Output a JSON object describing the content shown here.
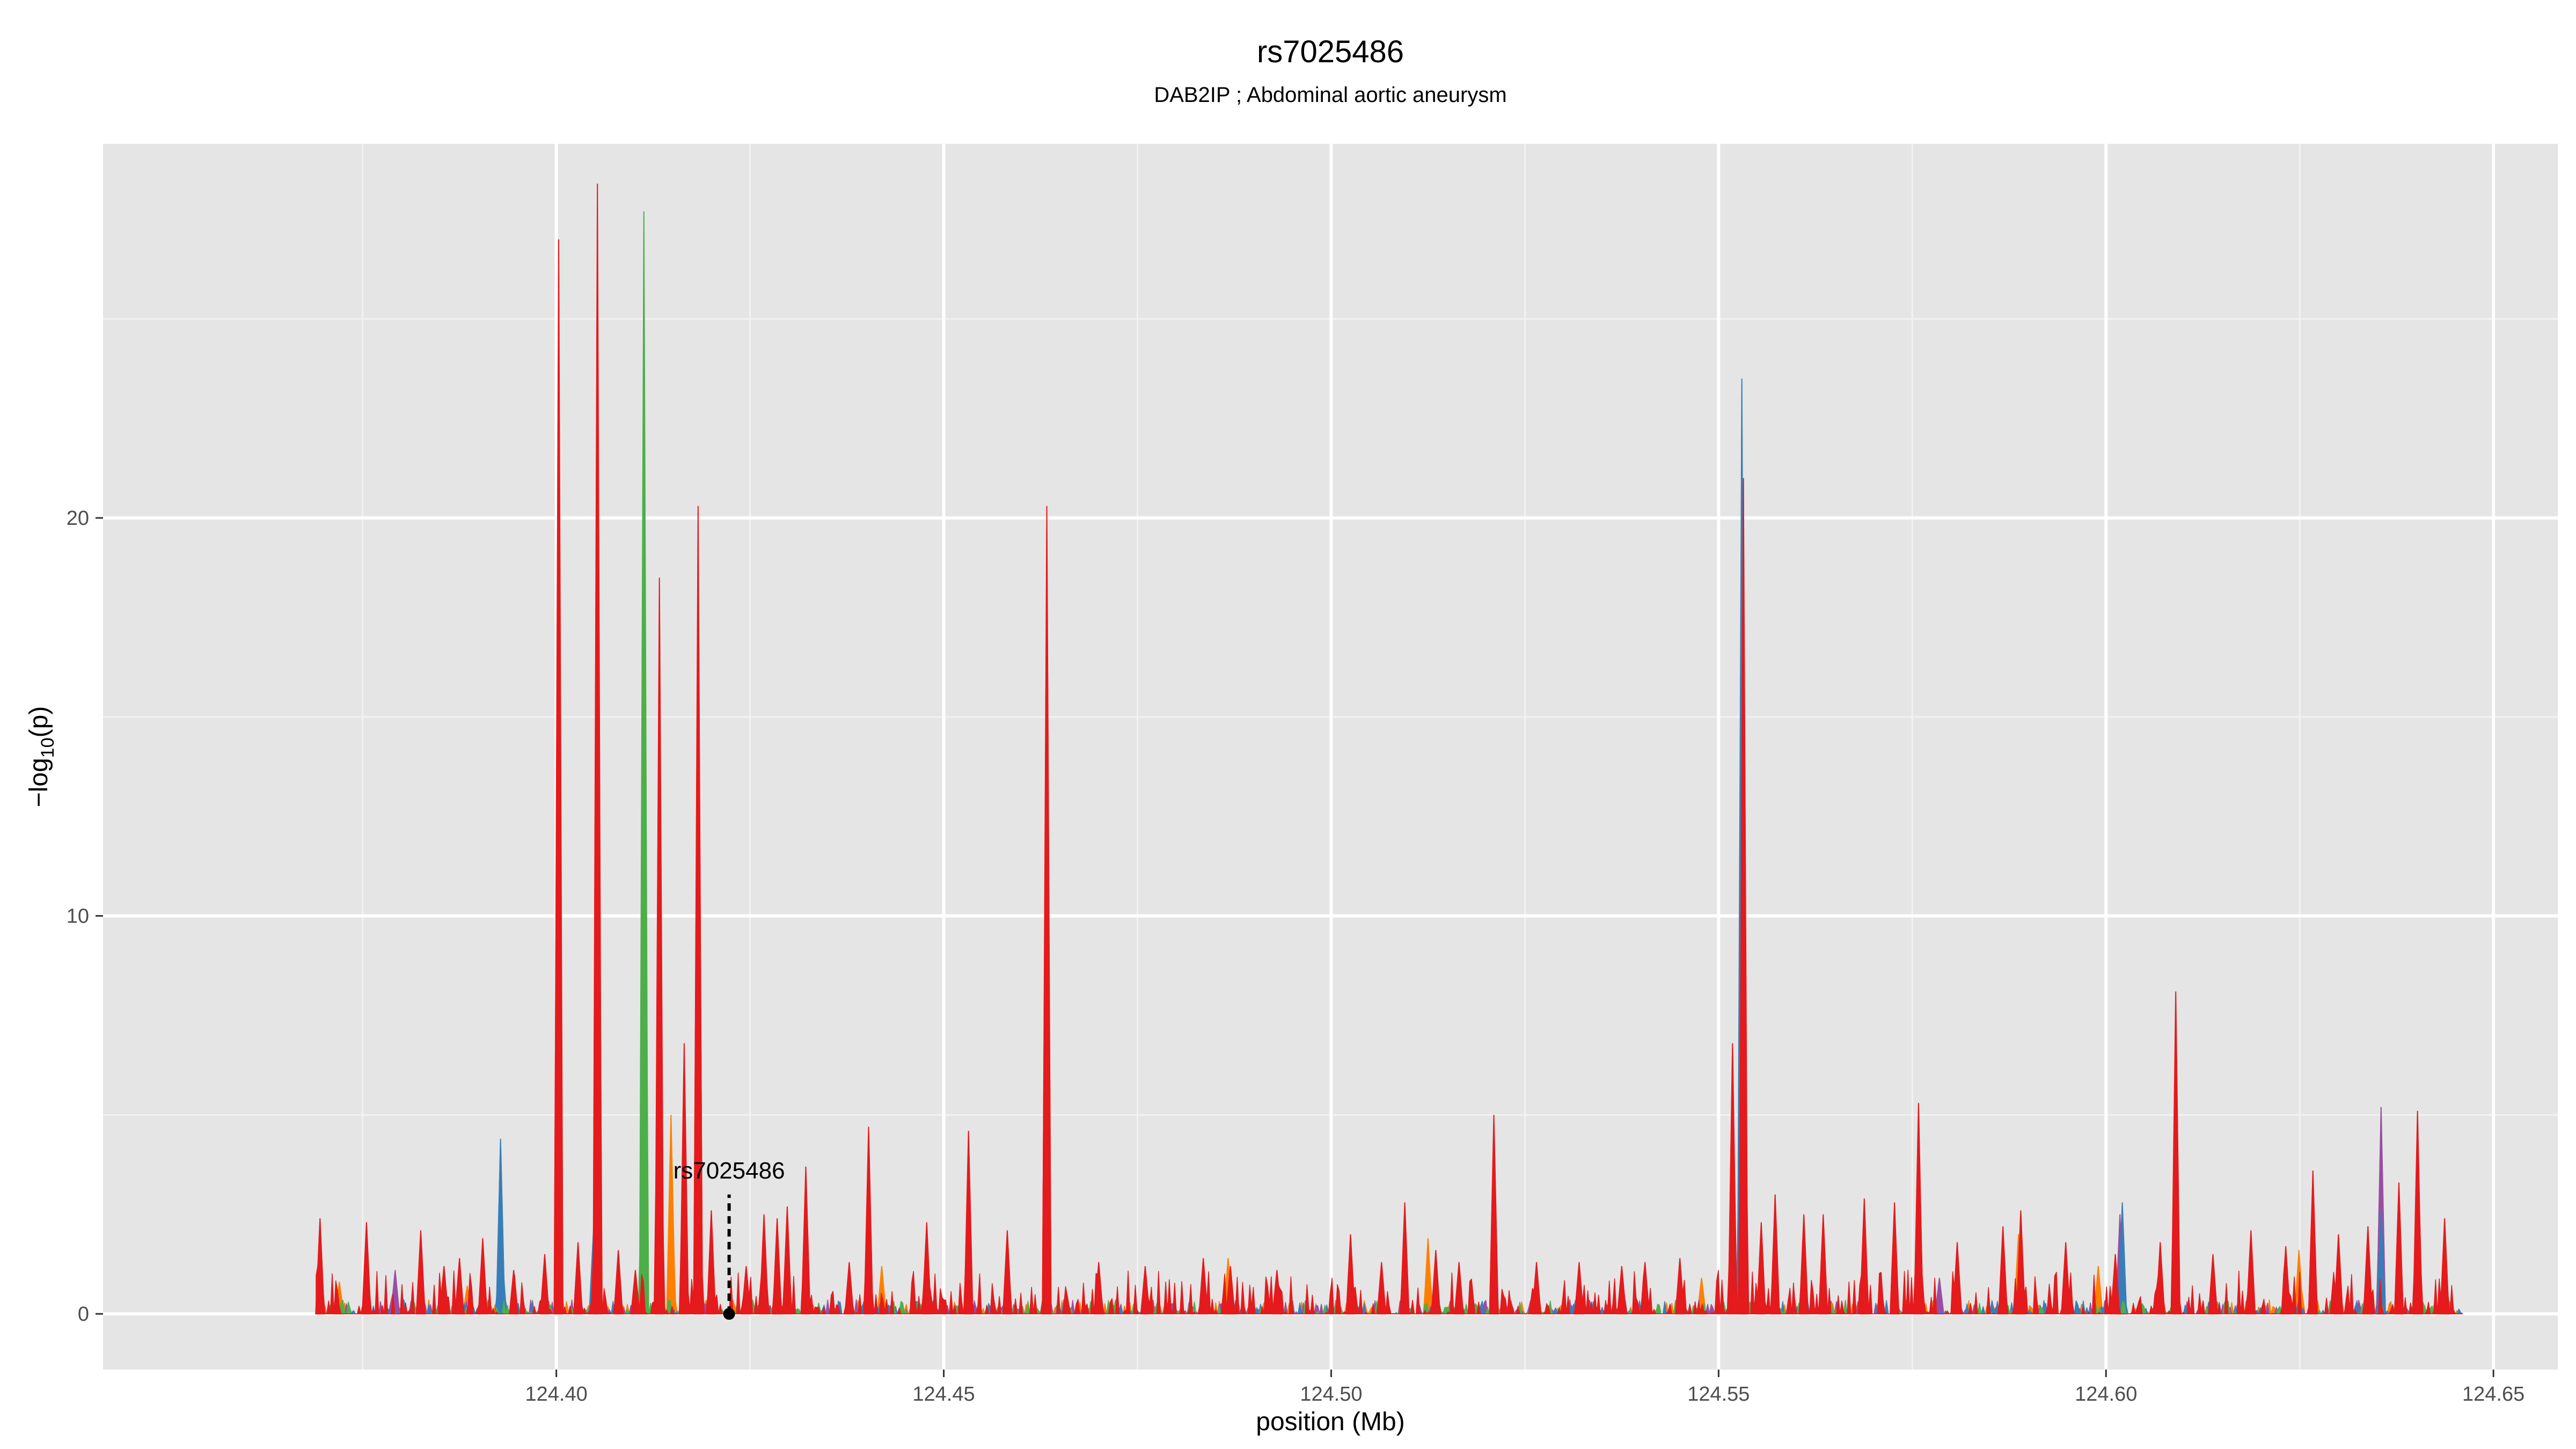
{
  "chart_data": {
    "type": "area",
    "title": "rs7025486",
    "subtitle": "DAB2IP ; Abdominal aortic aneurysm",
    "xlabel": "position (Mb)",
    "ylabel": "-log10(p)",
    "xlim": [
      124.3415,
      124.6583
    ],
    "ylim": [
      -1.4,
      29.4
    ],
    "x_ticks": [
      124.4,
      124.45,
      124.5,
      124.55,
      124.6,
      124.65
    ],
    "x_tick_labels": [
      "124.40",
      "124.45",
      "124.50",
      "124.55",
      "124.60",
      "124.65"
    ],
    "y_ticks": [
      0,
      10,
      20
    ],
    "y_tick_labels": [
      "0",
      "10",
      "20"
    ],
    "grid": true,
    "background": "#e5e5e5",
    "x_range": [
      124.369,
      124.646
    ],
    "annotation": {
      "label": "rs7025486",
      "x": 124.4223,
      "y": 0
    },
    "series": [
      {
        "color": "#e41a1c",
        "peaks": [
          [
            124.3695,
            2.4
          ],
          [
            124.3755,
            2.3
          ],
          [
            124.3825,
            2.1
          ],
          [
            124.3855,
            1.2
          ],
          [
            124.3875,
            1.4
          ],
          [
            124.3905,
            1.9
          ],
          [
            124.3945,
            1.1
          ],
          [
            124.3985,
            1.5
          ],
          [
            124.4003,
            27.0
          ],
          [
            124.4028,
            1.8
          ],
          [
            124.4053,
            28.4
          ],
          [
            124.408,
            1.6
          ],
          [
            124.4102,
            1.1
          ],
          [
            124.4133,
            18.5
          ],
          [
            124.4165,
            6.8
          ],
          [
            124.4183,
            20.3
          ],
          [
            124.42,
            2.6
          ],
          [
            124.4245,
            1.2
          ],
          [
            124.4268,
            2.5
          ],
          [
            124.4285,
            2.4
          ],
          [
            124.4298,
            2.7
          ],
          [
            124.4322,
            3.7
          ],
          [
            124.4378,
            1.3
          ],
          [
            124.4403,
            4.7
          ],
          [
            124.4478,
            2.3
          ],
          [
            124.4532,
            4.6
          ],
          [
            124.4582,
            2.1
          ],
          [
            124.4633,
            20.3
          ],
          [
            124.47,
            1.3
          ],
          [
            124.476,
            1.2
          ],
          [
            124.4835,
            1.4
          ],
          [
            124.487,
            1.2
          ],
          [
            124.493,
            1.1
          ],
          [
            124.5025,
            2.0
          ],
          [
            124.5065,
            1.3
          ],
          [
            124.5095,
            2.8
          ],
          [
            124.5135,
            1.6
          ],
          [
            124.5165,
            1.3
          ],
          [
            124.521,
            5.0
          ],
          [
            124.5265,
            1.3
          ],
          [
            124.532,
            1.3
          ],
          [
            124.5375,
            1.2
          ],
          [
            124.5405,
            1.3
          ],
          [
            124.545,
            1.4
          ],
          [
            124.5518,
            6.8
          ],
          [
            124.5532,
            21.0
          ],
          [
            124.5555,
            2.3
          ],
          [
            124.5573,
            3.0
          ],
          [
            124.561,
            2.5
          ],
          [
            124.5635,
            2.5
          ],
          [
            124.5688,
            2.9
          ],
          [
            124.5727,
            2.8
          ],
          [
            124.5758,
            5.3
          ],
          [
            124.5808,
            1.8
          ],
          [
            124.5867,
            2.2
          ],
          [
            124.589,
            2.6
          ],
          [
            124.5948,
            1.8
          ],
          [
            124.6012,
            1.5
          ],
          [
            124.607,
            1.8
          ],
          [
            124.609,
            8.1
          ],
          [
            124.6138,
            1.5
          ],
          [
            124.6187,
            2.1
          ],
          [
            124.6232,
            1.7
          ],
          [
            124.6267,
            3.6
          ],
          [
            124.63,
            2.0
          ],
          [
            124.6338,
            2.2
          ],
          [
            124.6378,
            3.3
          ],
          [
            124.6402,
            5.1
          ],
          [
            124.6437,
            2.4
          ]
        ]
      },
      {
        "color": "#377eb8",
        "peaks": [
          [
            124.3928,
            4.4
          ],
          [
            124.4048,
            2.1
          ],
          [
            124.553,
            23.5
          ],
          [
            124.6021,
            2.8
          ],
          [
            124.6355,
            2.6
          ]
        ]
      },
      {
        "color": "#4daf4a",
        "peaks": [
          [
            124.4113,
            27.7
          ],
          [
            124.644,
            0.6
          ]
        ]
      },
      {
        "color": "#ff7f00",
        "peaks": [
          [
            124.372,
            0.8
          ],
          [
            124.3885,
            0.7
          ],
          [
            124.4148,
            5.0
          ],
          [
            124.4285,
            1.0
          ],
          [
            124.442,
            1.2
          ],
          [
            124.4867,
            1.4
          ],
          [
            124.5125,
            1.9
          ],
          [
            124.5478,
            0.9
          ],
          [
            124.5887,
            2.0
          ],
          [
            124.599,
            1.2
          ],
          [
            124.6249,
            1.6
          ]
        ]
      },
      {
        "color": "#984ea3",
        "peaks": [
          [
            124.3792,
            1.1
          ],
          [
            124.5785,
            0.9
          ],
          [
            124.6018,
            2.5
          ],
          [
            124.6355,
            5.2
          ]
        ]
      }
    ]
  }
}
